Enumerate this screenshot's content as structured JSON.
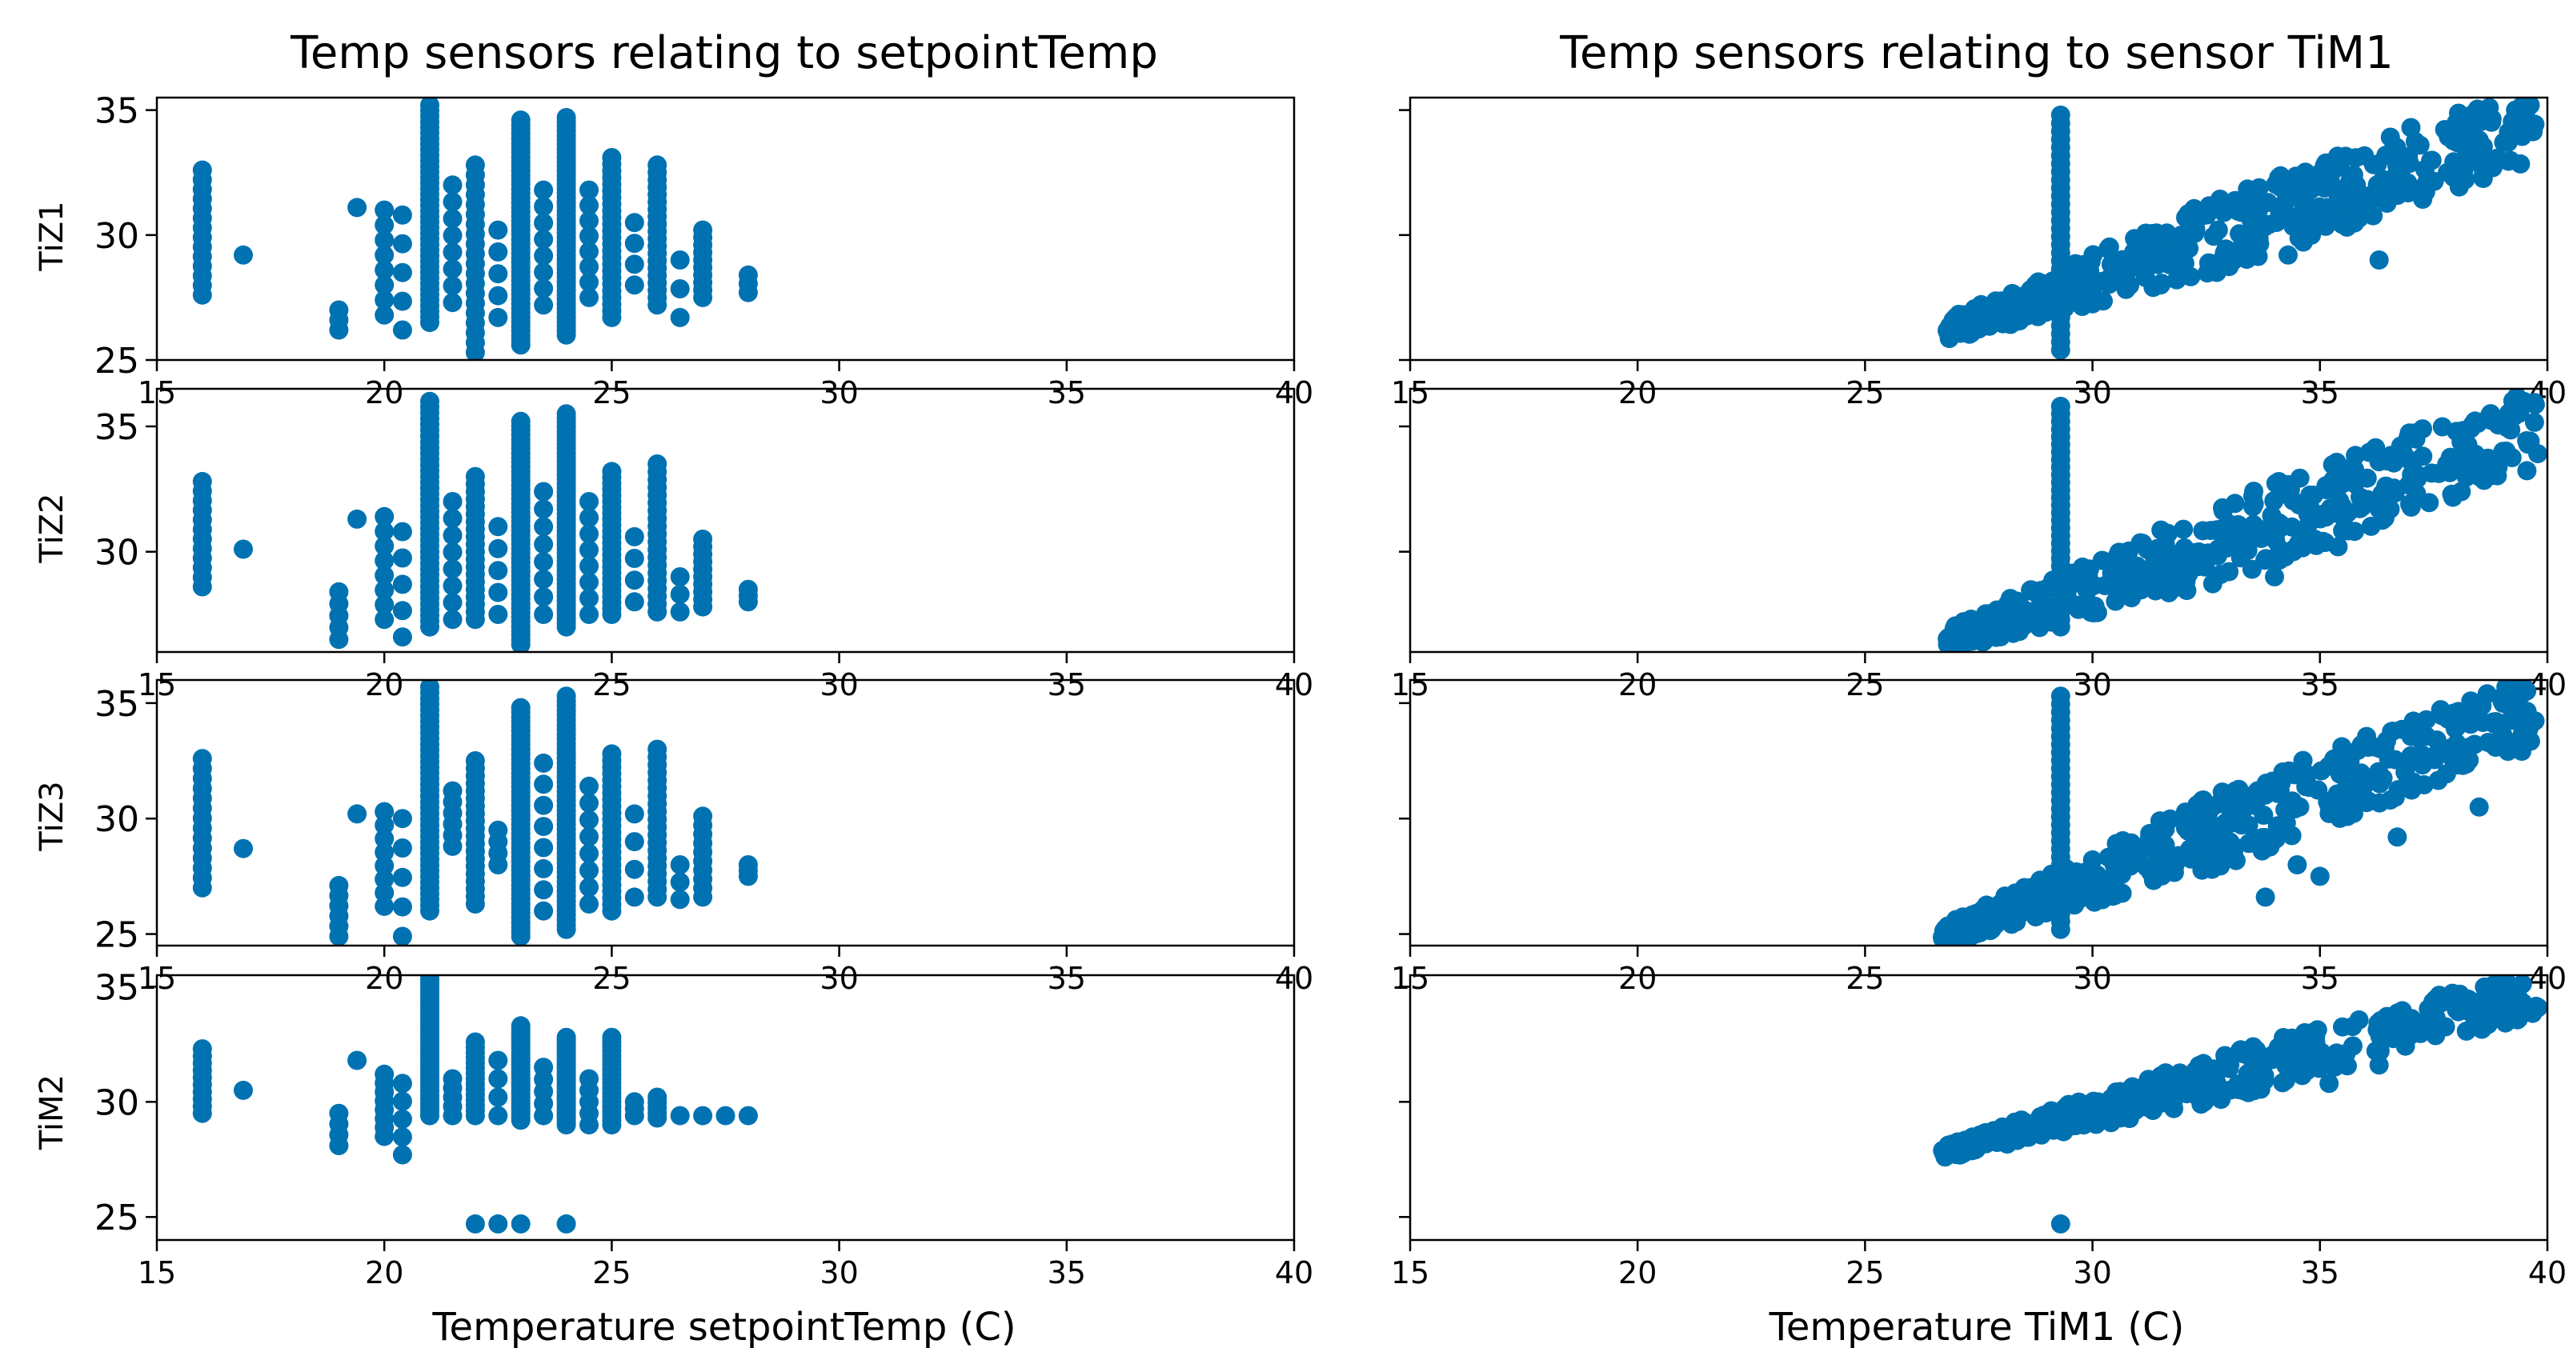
{
  "figure": {
    "marker_color": "#0072b2"
  },
  "columns": [
    {
      "title": "Temp sensors relating to setpointTemp",
      "xlabel": "Temperature setpointTemp (C)"
    },
    {
      "title": "Temp sensors relating to sensor TiM1",
      "xlabel": "Temperature TiM1 (C)"
    }
  ],
  "rows": [
    {
      "ylabel": "TiZ1",
      "ylim": [
        25,
        35.5
      ],
      "yticks": [
        "25",
        "30",
        "35"
      ]
    },
    {
      "ylabel": "TiZ2",
      "ylim": [
        26,
        36.5
      ],
      "yticks": [
        "30",
        "35"
      ]
    },
    {
      "ylabel": "TiZ3",
      "ylim": [
        24.5,
        36
      ],
      "yticks": [
        "25",
        "30",
        "35"
      ]
    },
    {
      "ylabel": "TiM2",
      "ylim": [
        24,
        35.5
      ],
      "yticks": [
        "25",
        "30",
        "35"
      ]
    }
  ],
  "x_axis": {
    "xlim": [
      15,
      40
    ],
    "ticks": [
      "15",
      "20",
      "25",
      "30",
      "35",
      "40"
    ]
  },
  "chart_data": [
    {
      "type": "scatter",
      "title": "Temp sensors relating to setpointTemp",
      "xlabel": "",
      "ylabel": "TiZ1",
      "xlim": [
        15,
        40
      ],
      "ylim": [
        25,
        35.5
      ],
      "clusters": [
        {
          "x": 16,
          "ymin": 27.6,
          "ymax": 32.6,
          "n": 14
        },
        {
          "x": 16.9,
          "ymin": 29.2,
          "ymax": 29.2,
          "n": 1
        },
        {
          "x": 19,
          "ymin": 26.2,
          "ymax": 27.0,
          "n": 3
        },
        {
          "x": 19.4,
          "ymin": 31.1,
          "ymax": 31.1,
          "n": 1
        },
        {
          "x": 20,
          "ymin": 26.8,
          "ymax": 31.0,
          "n": 8
        },
        {
          "x": 20.4,
          "ymin": 26.2,
          "ymax": 30.8,
          "n": 5
        },
        {
          "x": 21,
          "ymin": 26.5,
          "ymax": 35.2,
          "n": 40
        },
        {
          "x": 21.5,
          "ymin": 27.3,
          "ymax": 32.0,
          "n": 8
        },
        {
          "x": 22,
          "ymin": 25.3,
          "ymax": 32.8,
          "n": 20
        },
        {
          "x": 22.5,
          "ymin": 26.7,
          "ymax": 30.2,
          "n": 5
        },
        {
          "x": 23,
          "ymin": 25.6,
          "ymax": 34.6,
          "n": 50
        },
        {
          "x": 23.5,
          "ymin": 27.2,
          "ymax": 31.8,
          "n": 8
        },
        {
          "x": 24,
          "ymin": 26.0,
          "ymax": 34.7,
          "n": 50
        },
        {
          "x": 24.5,
          "ymin": 27.5,
          "ymax": 31.8,
          "n": 8
        },
        {
          "x": 25,
          "ymin": 26.7,
          "ymax": 33.1,
          "n": 25
        },
        {
          "x": 25.5,
          "ymin": 28.0,
          "ymax": 30.5,
          "n": 4
        },
        {
          "x": 26,
          "ymin": 27.2,
          "ymax": 32.8,
          "n": 20
        },
        {
          "x": 26.5,
          "ymin": 26.7,
          "ymax": 29.0,
          "n": 3
        },
        {
          "x": 27,
          "ymin": 27.5,
          "ymax": 30.2,
          "n": 10
        },
        {
          "x": 28,
          "ymin": 27.7,
          "ymax": 28.4,
          "n": 3
        }
      ]
    },
    {
      "type": "scatter",
      "title": "Temp sensors relating to setpointTemp",
      "xlabel": "",
      "ylabel": "TiZ2",
      "xlim": [
        15,
        40
      ],
      "ylim": [
        26,
        36.5
      ],
      "clusters": [
        {
          "x": 16,
          "ymin": 28.6,
          "ymax": 32.8,
          "n": 12
        },
        {
          "x": 16.9,
          "ymin": 30.1,
          "ymax": 30.1,
          "n": 1
        },
        {
          "x": 19,
          "ymin": 26.5,
          "ymax": 28.4,
          "n": 5
        },
        {
          "x": 19.4,
          "ymin": 31.3,
          "ymax": 31.3,
          "n": 1
        },
        {
          "x": 20,
          "ymin": 27.3,
          "ymax": 31.4,
          "n": 8
        },
        {
          "x": 20.4,
          "ymin": 26.6,
          "ymax": 30.8,
          "n": 5
        },
        {
          "x": 21,
          "ymin": 27.0,
          "ymax": 36.0,
          "n": 40
        },
        {
          "x": 21.5,
          "ymin": 27.3,
          "ymax": 32.0,
          "n": 8
        },
        {
          "x": 22,
          "ymin": 27.3,
          "ymax": 33.0,
          "n": 20
        },
        {
          "x": 22.5,
          "ymin": 27.5,
          "ymax": 31.0,
          "n": 5
        },
        {
          "x": 23,
          "ymin": 26.3,
          "ymax": 35.2,
          "n": 50
        },
        {
          "x": 23.5,
          "ymin": 27.5,
          "ymax": 32.4,
          "n": 8
        },
        {
          "x": 24,
          "ymin": 27.0,
          "ymax": 35.5,
          "n": 50
        },
        {
          "x": 24.5,
          "ymin": 27.5,
          "ymax": 32.0,
          "n": 8
        },
        {
          "x": 25,
          "ymin": 27.5,
          "ymax": 33.2,
          "n": 25
        },
        {
          "x": 25.5,
          "ymin": 28.0,
          "ymax": 30.6,
          "n": 4
        },
        {
          "x": 26,
          "ymin": 27.6,
          "ymax": 33.5,
          "n": 20
        },
        {
          "x": 26.5,
          "ymin": 27.6,
          "ymax": 29.0,
          "n": 3
        },
        {
          "x": 27,
          "ymin": 27.8,
          "ymax": 30.5,
          "n": 10
        },
        {
          "x": 28,
          "ymin": 28.0,
          "ymax": 28.5,
          "n": 3
        }
      ]
    },
    {
      "type": "scatter",
      "title": "Temp sensors relating to setpointTemp",
      "xlabel": "",
      "ylabel": "TiZ3",
      "xlim": [
        15,
        40
      ],
      "ylim": [
        24.5,
        36
      ],
      "clusters": [
        {
          "x": 16,
          "ymin": 27.0,
          "ymax": 32.6,
          "n": 14
        },
        {
          "x": 16.9,
          "ymin": 28.7,
          "ymax": 28.7,
          "n": 1
        },
        {
          "x": 19,
          "ymin": 24.9,
          "ymax": 27.1,
          "n": 6
        },
        {
          "x": 19.4,
          "ymin": 30.2,
          "ymax": 30.2,
          "n": 1
        },
        {
          "x": 20,
          "ymin": 26.2,
          "ymax": 30.3,
          "n": 8
        },
        {
          "x": 20.4,
          "ymin": 24.9,
          "ymax": 30.0,
          "n": 5
        },
        {
          "x": 21,
          "ymin": 26.0,
          "ymax": 35.7,
          "n": 40
        },
        {
          "x": 21.5,
          "ymin": 28.8,
          "ymax": 31.2,
          "n": 6
        },
        {
          "x": 22,
          "ymin": 26.3,
          "ymax": 32.5,
          "n": 20
        },
        {
          "x": 22.5,
          "ymin": 28.0,
          "ymax": 29.5,
          "n": 4
        },
        {
          "x": 23,
          "ymin": 24.9,
          "ymax": 34.8,
          "n": 50
        },
        {
          "x": 23.5,
          "ymin": 26.0,
          "ymax": 32.4,
          "n": 8
        },
        {
          "x": 24,
          "ymin": 25.2,
          "ymax": 35.3,
          "n": 50
        },
        {
          "x": 24.5,
          "ymin": 26.3,
          "ymax": 31.4,
          "n": 8
        },
        {
          "x": 25,
          "ymin": 26.0,
          "ymax": 32.8,
          "n": 25
        },
        {
          "x": 25.5,
          "ymin": 26.6,
          "ymax": 30.2,
          "n": 4
        },
        {
          "x": 26,
          "ymin": 26.6,
          "ymax": 33.0,
          "n": 20
        },
        {
          "x": 26.5,
          "ymin": 26.5,
          "ymax": 28.0,
          "n": 3
        },
        {
          "x": 27,
          "ymin": 26.6,
          "ymax": 30.1,
          "n": 10
        },
        {
          "x": 28,
          "ymin": 27.5,
          "ymax": 28.0,
          "n": 3
        }
      ]
    },
    {
      "type": "scatter",
      "title": "Temp sensors relating to setpointTemp",
      "xlabel": "Temperature setpointTemp (C)",
      "ylabel": "TiM2",
      "xlim": [
        15,
        40
      ],
      "ylim": [
        24,
        35.5
      ],
      "clusters": [
        {
          "x": 16,
          "ymin": 29.5,
          "ymax": 32.3,
          "n": 10
        },
        {
          "x": 16.9,
          "ymin": 30.5,
          "ymax": 30.5,
          "n": 1
        },
        {
          "x": 19,
          "ymin": 28.1,
          "ymax": 29.5,
          "n": 4
        },
        {
          "x": 19.4,
          "ymin": 31.8,
          "ymax": 31.8,
          "n": 1
        },
        {
          "x": 20,
          "ymin": 28.5,
          "ymax": 31.2,
          "n": 8
        },
        {
          "x": 20.4,
          "ymin": 27.7,
          "ymax": 30.8,
          "n": 5
        },
        {
          "x": 21,
          "ymin": 29.4,
          "ymax": 35.5,
          "n": 35
        },
        {
          "x": 21.5,
          "ymin": 29.4,
          "ymax": 31.0,
          "n": 5
        },
        {
          "x": 22,
          "ymin": 29.4,
          "ymax": 32.6,
          "n": 15
        },
        {
          "x": 22.5,
          "ymin": 29.4,
          "ymax": 31.8,
          "n": 4
        },
        {
          "x": 23,
          "ymin": 29.2,
          "ymax": 33.3,
          "n": 30
        },
        {
          "x": 23.5,
          "ymin": 29.4,
          "ymax": 31.5,
          "n": 5
        },
        {
          "x": 24,
          "ymin": 29.0,
          "ymax": 32.8,
          "n": 30
        },
        {
          "x": 24.5,
          "ymin": 29.0,
          "ymax": 31.0,
          "n": 5
        },
        {
          "x": 25,
          "ymin": 29.0,
          "ymax": 32.8,
          "n": 20
        },
        {
          "x": 25.5,
          "ymin": 29.4,
          "ymax": 30.0,
          "n": 3
        },
        {
          "x": 26,
          "ymin": 29.3,
          "ymax": 30.2,
          "n": 5
        },
        {
          "x": 26.5,
          "ymin": 29.4,
          "ymax": 29.4,
          "n": 1
        },
        {
          "x": 27,
          "ymin": 29.4,
          "ymax": 29.4,
          "n": 1
        },
        {
          "x": 27.5,
          "ymin": 29.4,
          "ymax": 29.4,
          "n": 1
        },
        {
          "x": 28,
          "ymin": 29.4,
          "ymax": 29.4,
          "n": 1
        },
        {
          "x": 22,
          "ymin": 24.7,
          "ymax": 24.7,
          "n": 1
        },
        {
          "x": 22.5,
          "ymin": 24.7,
          "ymax": 24.7,
          "n": 1
        },
        {
          "x": 23,
          "ymin": 24.7,
          "ymax": 24.7,
          "n": 1
        },
        {
          "x": 24,
          "ymin": 24.7,
          "ymax": 24.7,
          "n": 1
        }
      ]
    },
    {
      "type": "scatter",
      "title": "Temp sensors relating to sensor TiM1",
      "xlabel": "",
      "ylabel": "TiZ1",
      "xlim": [
        15,
        40
      ],
      "ylim": [
        25,
        35.5
      ],
      "spike": {
        "x": 29.3,
        "ymin": 25.4,
        "ymax": 34.8
      },
      "band": {
        "x0": 26.8,
        "y0": 26.2,
        "x1": 39.8,
        "y1": 34.5,
        "spread": 2.4,
        "n": 420
      },
      "outliers": [
        [
          37.0,
          34.3
        ],
        [
          38.0,
          34.5
        ],
        [
          39.3,
          35.0
        ],
        [
          38.8,
          32.7
        ],
        [
          37.8,
          32.5
        ],
        [
          36.0,
          31.0
        ],
        [
          35.8,
          32.0
        ],
        [
          37.2,
          33.6
        ],
        [
          34.3,
          29.2
        ],
        [
          36.3,
          29.0
        ],
        [
          33.5,
          30.2
        ],
        [
          38.5,
          33.8
        ]
      ]
    },
    {
      "type": "scatter",
      "title": "Temp sensors relating to sensor TiM1",
      "xlabel": "",
      "ylabel": "TiZ2",
      "xlim": [
        15,
        40
      ],
      "ylim": [
        26,
        36.5
      ],
      "spike": {
        "x": 29.3,
        "ymin": 27.0,
        "ymax": 35.8
      },
      "band": {
        "x0": 26.8,
        "y0": 26.5,
        "x1": 39.8,
        "y1": 35.0,
        "spread": 2.6,
        "n": 420
      },
      "outliers": [
        [
          38.0,
          34.8
        ],
        [
          39.3,
          35.5
        ],
        [
          37.0,
          33.6
        ],
        [
          36.5,
          32.5
        ],
        [
          35.4,
          30.2
        ],
        [
          35.5,
          31.8
        ],
        [
          34.0,
          29.0
        ],
        [
          38.5,
          33.0
        ]
      ]
    },
    {
      "type": "scatter",
      "title": "Temp sensors relating to sensor TiM1",
      "xlabel": "",
      "ylabel": "TiZ3",
      "xlim": [
        15,
        40
      ],
      "ylim": [
        24.5,
        36
      ],
      "spike": {
        "x": 29.3,
        "ymin": 25.2,
        "ymax": 35.3
      },
      "band": {
        "x0": 26.7,
        "y0": 24.9,
        "x1": 39.8,
        "y1": 34.8,
        "spread": 2.6,
        "n": 420
      },
      "outliers": [
        [
          39.0,
          35.1
        ],
        [
          38.0,
          34.2
        ],
        [
          37.2,
          33.6
        ],
        [
          38.5,
          30.5
        ],
        [
          36.7,
          29.2
        ],
        [
          35.0,
          27.5
        ],
        [
          34.5,
          28.0
        ],
        [
          36.0,
          31.5
        ],
        [
          33.8,
          26.6
        ]
      ]
    },
    {
      "type": "scatter",
      "title": "Temp sensors relating to sensor TiM1",
      "xlabel": "Temperature TiM1 (C)",
      "ylabel": "TiM2",
      "xlim": [
        15,
        40
      ],
      "ylim": [
        24,
        35.5
      ],
      "spike": {
        "x": 29.3,
        "ymin": 24.7,
        "ymax": 24.7
      },
      "band": {
        "x0": 26.7,
        "y0": 27.8,
        "x1": 39.8,
        "y1": 34.8,
        "spread": 1.6,
        "n": 380
      },
      "outliers": [
        [
          38.0,
          34.0
        ],
        [
          39.3,
          34.8
        ],
        [
          37.0,
          33.2
        ],
        [
          36.3,
          31.6
        ],
        [
          35.2,
          30.8
        ]
      ]
    }
  ]
}
